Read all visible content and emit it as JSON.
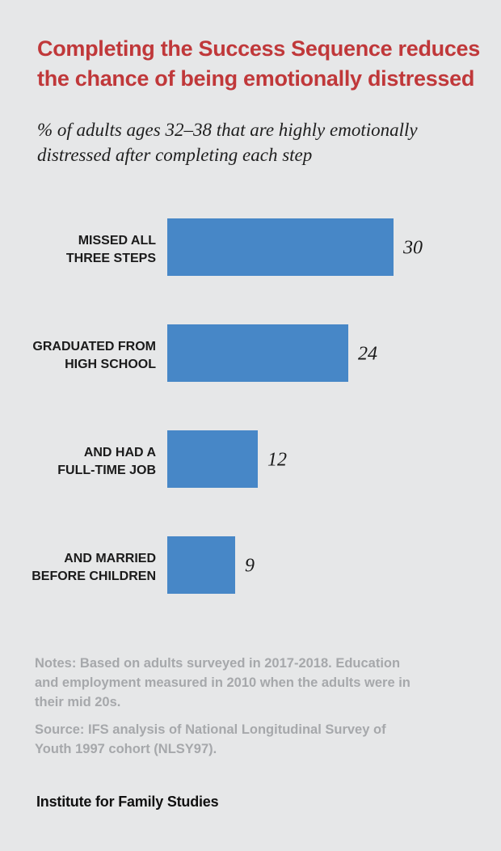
{
  "title_lines": [
    "Completing the Success Sequence reduces",
    "the chance of being emotionally distressed"
  ],
  "subtitle_lines": [
    "% of adults ages 32–38 that are highly emotionally",
    "distressed after completing each step"
  ],
  "notes_lines": [
    "Notes: Based on adults surveyed in 2017-2018. Education",
    "and employment measured in 2010 when the adults were in",
    "their mid 20s."
  ],
  "source_lines": [
    "Source: IFS analysis of National Longitudinal Survey of",
    "Youth 1997 cohort (NLSY97)."
  ],
  "brand": "Institute for Family Studies",
  "colors": {
    "background": "#e6e7e8",
    "title": "#c0383a",
    "bar": "#4787c7",
    "notes": "#a6a8ab"
  },
  "chart_data": {
    "type": "bar",
    "orientation": "horizontal",
    "title": "Completing the Success Sequence reduces the chance of being emotionally distressed",
    "subtitle": "% of adults ages 32–38 that are highly emotionally distressed after completing each step",
    "xlabel": "",
    "ylabel": "",
    "xlim": [
      0,
      30
    ],
    "grid": false,
    "legend": "none",
    "categories": [
      [
        "MISSED ALL",
        "THREE STEPS"
      ],
      [
        "GRADUATED FROM",
        "HIGH SCHOOL"
      ],
      [
        "AND HAD A",
        "FULL-TIME JOB"
      ],
      [
        "AND MARRIED",
        "BEFORE CHILDREN"
      ]
    ],
    "values": [
      30,
      24,
      12,
      9
    ]
  }
}
